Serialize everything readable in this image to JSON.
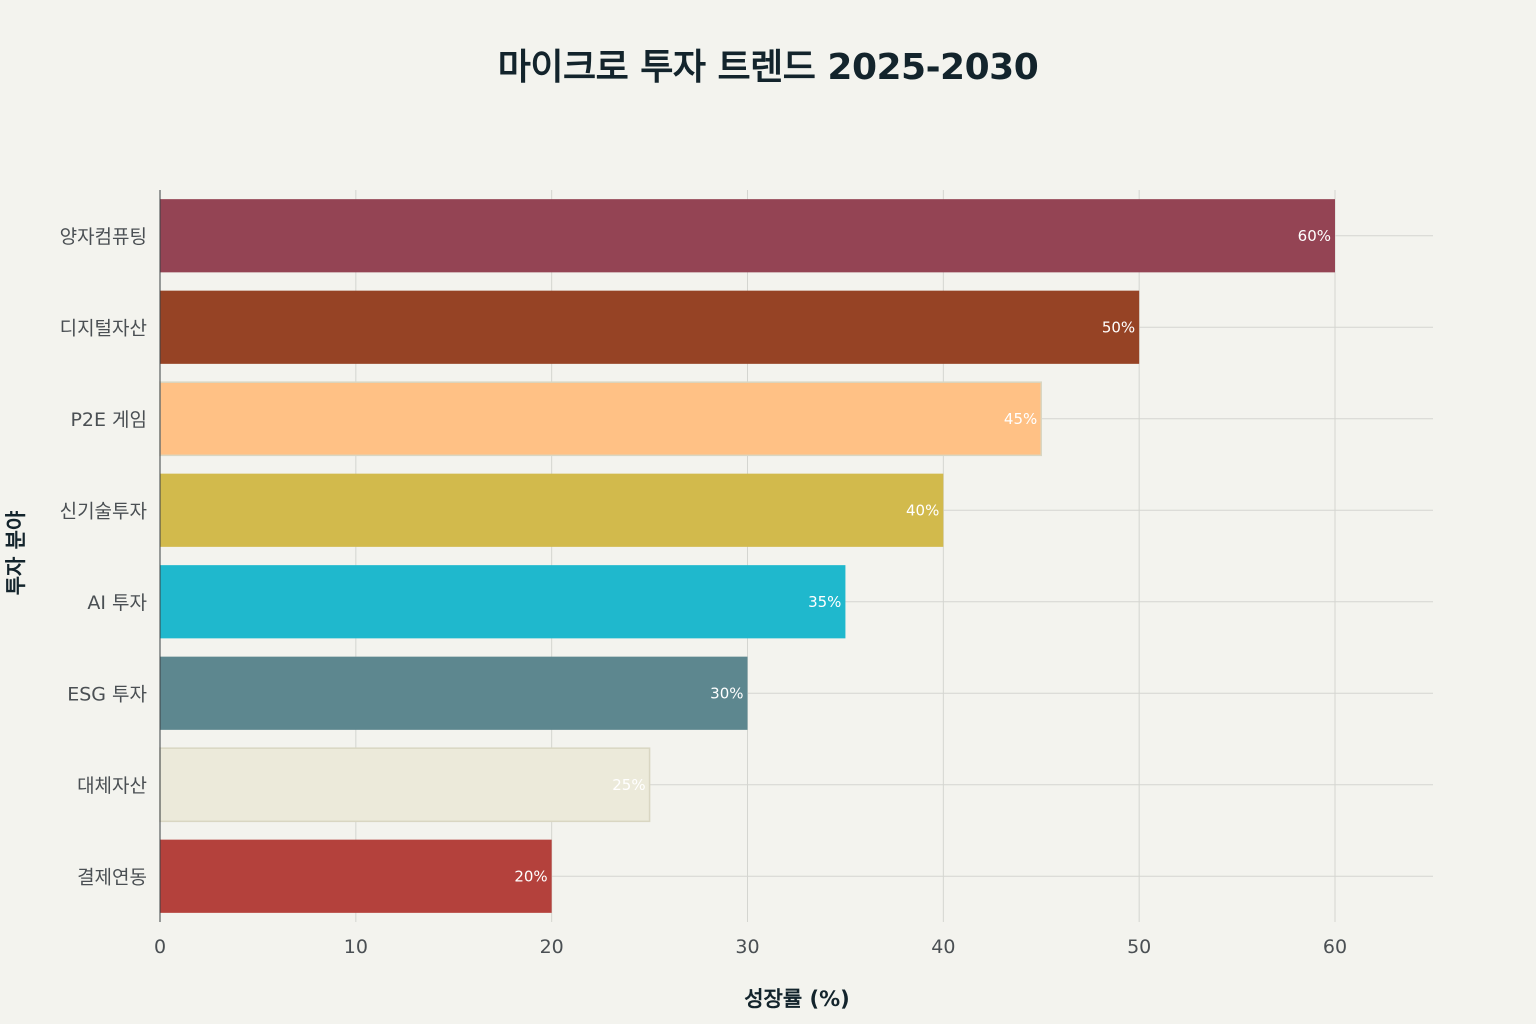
{
  "chart_data": {
    "type": "bar",
    "orientation": "horizontal",
    "title": "마이크로 투자 트렌드 2025-2030",
    "xlabel": "성장률 (%)",
    "ylabel": "투자 분야",
    "xlim": [
      0,
      65
    ],
    "x_ticks": [
      0,
      10,
      20,
      30,
      40,
      50,
      60
    ],
    "grid": true,
    "categories": [
      "양자컴퓨팅",
      "디지털자산",
      "P2E 게임",
      "신기술투자",
      "AI 투자",
      "ESG 투자",
      "대체자산",
      "결제연동"
    ],
    "values": [
      60,
      50,
      45,
      40,
      35,
      30,
      25,
      20
    ],
    "data_labels": [
      "60%",
      "50%",
      "45%",
      "40%",
      "35%",
      "30%",
      "25%",
      "20%"
    ],
    "colors": [
      "#944454",
      "#964325",
      "#ffc185",
      "#d2ba4c",
      "#1fb8cd",
      "#5d878f",
      "#eceada",
      "#b4413c"
    ]
  }
}
